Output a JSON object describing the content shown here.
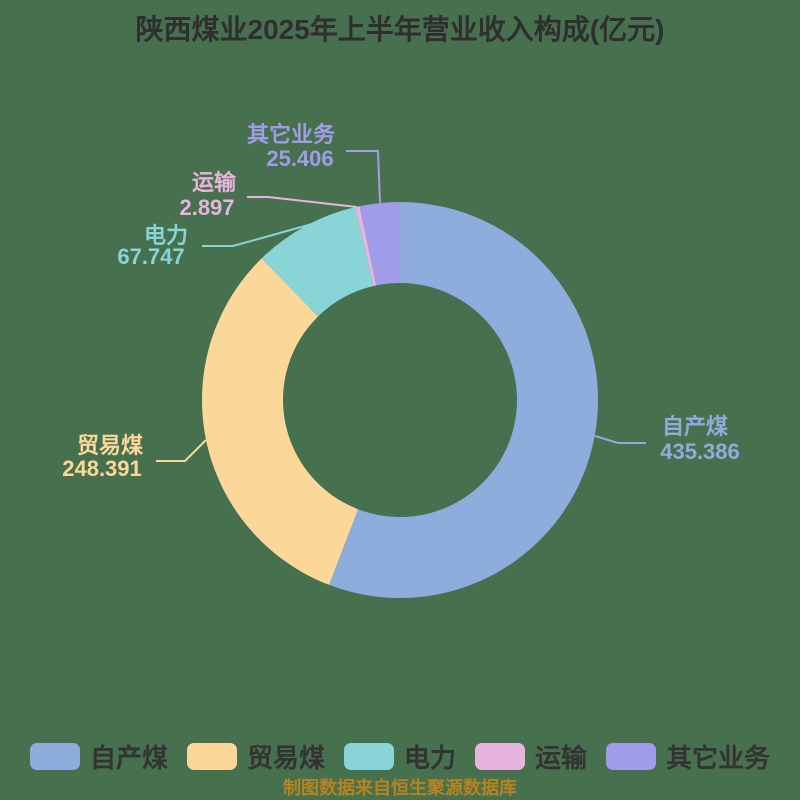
{
  "title": "陕西煤业2025年上半年营业收入构成(亿元)",
  "colors": {
    "background": "#47704E",
    "title_text": "#2F2F2F",
    "legend_text": "#333333",
    "footer_text": "#B5831F"
  },
  "chart_data": {
    "type": "pie",
    "donut": true,
    "title": "陕西煤业2025年上半年营业收入构成(亿元)",
    "unit": "亿元",
    "start_angle_deg": 0,
    "clockwise": true,
    "legend_position": "bottom",
    "series": [
      {
        "name": "自产煤",
        "value": 435.386,
        "value_label": "435.386",
        "color": "#8EACDC"
      },
      {
        "name": "贸易煤",
        "value": 248.391,
        "value_label": "248.391",
        "color": "#FBD79A"
      },
      {
        "name": "电力",
        "value": 67.747,
        "value_label": "67.747",
        "color": "#89D4D6"
      },
      {
        "name": "运输",
        "value": 2.897,
        "value_label": "2.897",
        "color": "#E6B4DD"
      },
      {
        "name": "其它业务",
        "value": 25.406,
        "value_label": "25.406",
        "color": "#A19CE9"
      }
    ],
    "total": 779.827
  },
  "legend": {
    "items": [
      "自产煤",
      "贸易煤",
      "电力",
      "运输",
      "其它业务"
    ]
  },
  "footer": {
    "text": "制图数据来自恒生聚源数据库"
  }
}
